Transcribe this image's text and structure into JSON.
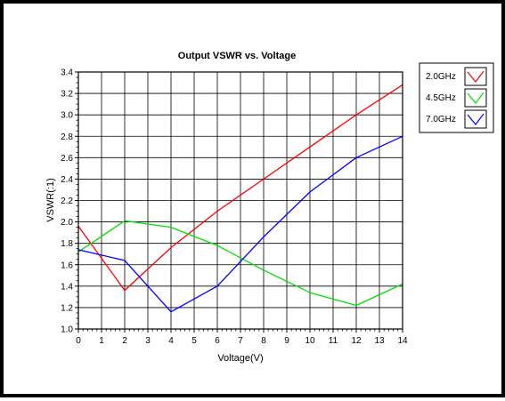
{
  "chart_data": {
    "type": "line",
    "title": "Output VSWR vs. Voltage",
    "xlabel": "Voltage(V)",
    "ylabel": "VSWR(:1)",
    "xlim": [
      0,
      14
    ],
    "ylim": [
      1.0,
      3.4
    ],
    "x_ticks": [
      0,
      1,
      2,
      3,
      4,
      5,
      6,
      7,
      8,
      9,
      10,
      11,
      12,
      13,
      14
    ],
    "y_ticks": [
      1.0,
      1.2,
      1.4,
      1.6,
      1.8,
      2.0,
      2.2,
      2.4,
      2.6,
      2.8,
      3.0,
      3.2,
      3.4
    ],
    "grid": true,
    "legend_position": "right",
    "series": [
      {
        "name": "2.0GHz",
        "color": "#ff0000",
        "x": [
          0,
          2,
          4,
          6,
          8,
          10,
          12,
          14
        ],
        "values": [
          1.96,
          1.36,
          1.76,
          2.1,
          2.4,
          2.7,
          3.0,
          3.28
        ]
      },
      {
        "name": "4.5GHz",
        "color": "#00e000",
        "x": [
          0,
          2,
          4,
          6,
          8,
          10,
          12,
          14
        ],
        "values": [
          1.72,
          2.01,
          1.95,
          1.78,
          1.55,
          1.34,
          1.22,
          1.42
        ]
      },
      {
        "name": "7.0GHz",
        "color": "#0000ff",
        "x": [
          0,
          2,
          4,
          6,
          8,
          10,
          12,
          14
        ],
        "values": [
          1.74,
          1.64,
          1.16,
          1.4,
          1.86,
          2.28,
          2.6,
          2.8
        ]
      }
    ]
  }
}
